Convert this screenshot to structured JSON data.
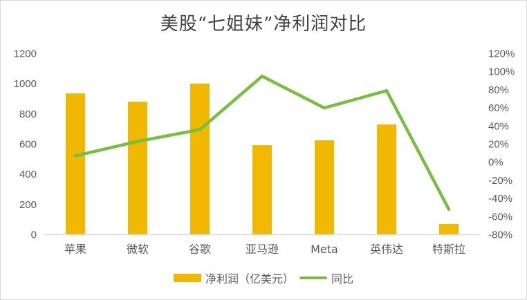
{
  "chart_data": {
    "type": "bar+line",
    "title": "美股“七姐妹”净利润对比",
    "categories": [
      "苹果",
      "微软",
      "谷歌",
      "亚马逊",
      "Meta",
      "英伟达",
      "特斯拉"
    ],
    "series": [
      {
        "name": "净利润（亿美元）",
        "type": "bar",
        "axis": "left",
        "color": "#f0b800",
        "values": [
          936,
          881,
          1001,
          593,
          625,
          730,
          71
        ]
      },
      {
        "name": "同比",
        "type": "line",
        "axis": "right",
        "color": "#78be41",
        "values": [
          0.07,
          0.23,
          0.36,
          0.95,
          0.6,
          0.79,
          -0.52
        ]
      }
    ],
    "left_axis": {
      "min": 0,
      "max": 1200,
      "step": 200,
      "ticks": [
        "0",
        "200",
        "400",
        "600",
        "800",
        "1000",
        "1200"
      ]
    },
    "right_axis": {
      "min": -0.8,
      "max": 1.2,
      "step": 0.2,
      "ticks": [
        "-80%",
        "-60%",
        "-40%",
        "-20%",
        "0%",
        "20%",
        "40%",
        "60%",
        "80%",
        "100%",
        "120%"
      ]
    },
    "xlabel": "",
    "ylabel": "",
    "grid": false,
    "legend_position": "bottom"
  },
  "legend": {
    "bar_label": "净利润（亿美元）",
    "line_label": "同比"
  }
}
